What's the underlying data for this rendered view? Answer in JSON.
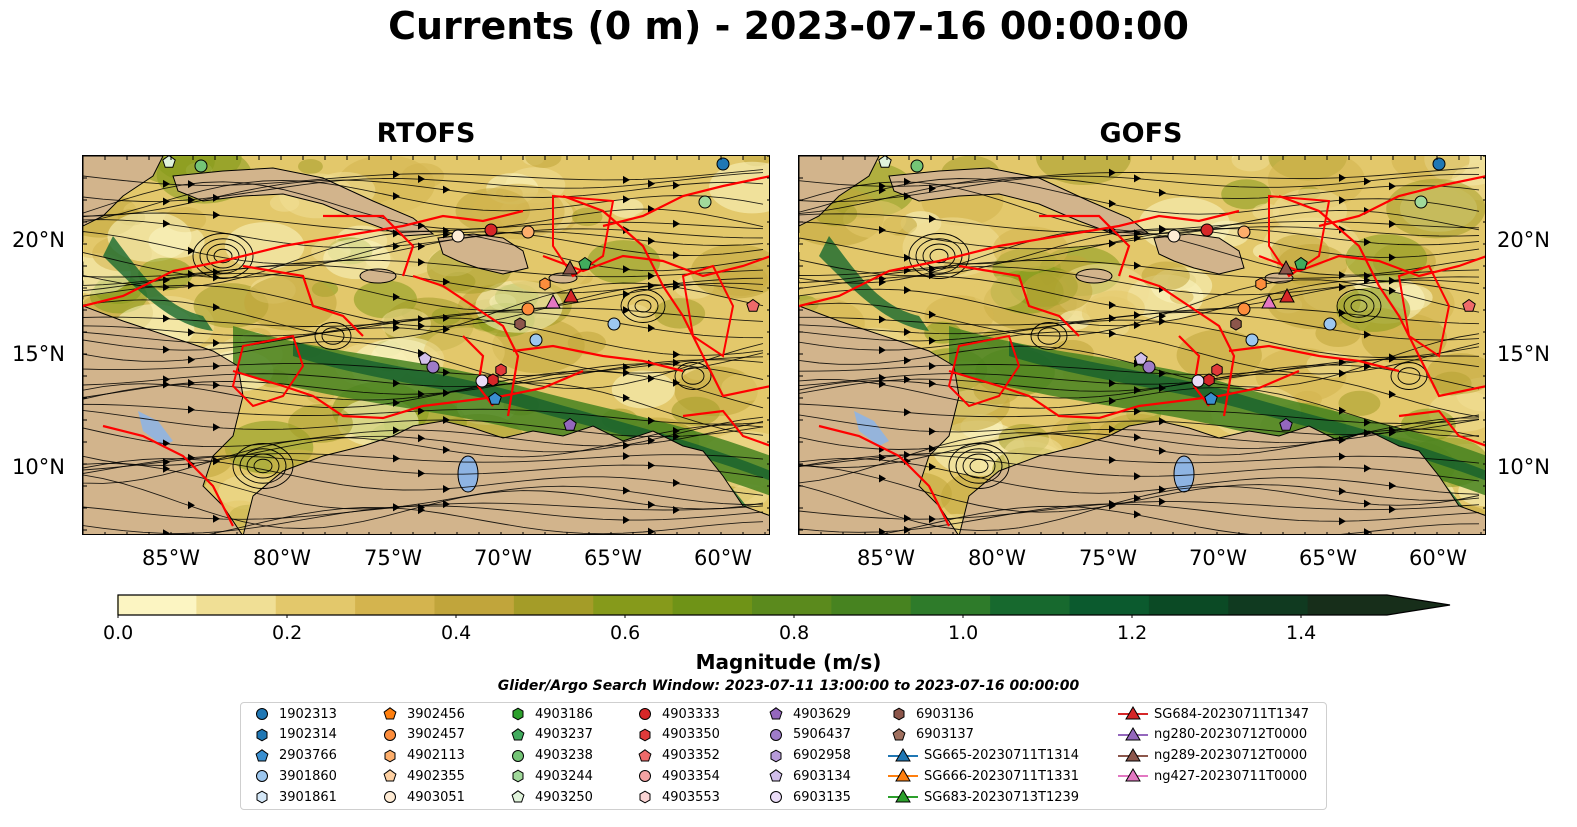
{
  "title": "Currents (0 m) - 2023-07-16 00:00:00",
  "panels": [
    {
      "name": "RTOFS"
    },
    {
      "name": "GOFS"
    }
  ],
  "lat_labels": [
    "20°N",
    "15°N",
    "10°N"
  ],
  "lon_labels": [
    "85°W",
    "80°W",
    "75°W",
    "70°W",
    "65°W",
    "60°W"
  ],
  "colorbar": {
    "title": "Magnitude (m/s)",
    "ticks": [
      "0.0",
      "0.2",
      "0.4",
      "0.6",
      "0.8",
      "1.0",
      "1.2",
      "1.4"
    ],
    "colors": [
      "#fcf5c2",
      "#f0df95",
      "#e3c86b",
      "#d4b44e",
      "#c1a53b",
      "#a49c28",
      "#869a1b",
      "#6f9317",
      "#5b8a1d",
      "#478320",
      "#2e7b2a",
      "#17692e",
      "#0b5a2e",
      "#0b4a25",
      "#103a20",
      "#172e1a"
    ]
  },
  "search_window": "Glider/Argo Search Window: 2023-07-11 13:00:00 to 2023-07-16 00:00:00",
  "legend": {
    "columns": [
      [
        {
          "label": "1902313",
          "marker": "circle",
          "color": "#1f77b4"
        },
        {
          "label": "1902314",
          "marker": "hexagon",
          "color": "#1f77b4"
        },
        {
          "label": "2903766",
          "marker": "pentagon",
          "color": "#3a8fd0"
        },
        {
          "label": "3901860",
          "marker": "circle",
          "color": "#9dc7ef"
        },
        {
          "label": "3901861",
          "marker": "hexagon",
          "color": "#d4e7f7"
        }
      ],
      [
        {
          "label": "3902456",
          "marker": "pentagon",
          "color": "#ff7f0e"
        },
        {
          "label": "3902457",
          "marker": "circle",
          "color": "#fd8d3c"
        },
        {
          "label": "4902113",
          "marker": "hexagon",
          "color": "#fdae6b"
        },
        {
          "label": "4902355",
          "marker": "pentagon",
          "color": "#fdd0a2"
        },
        {
          "label": "4903051",
          "marker": "circle",
          "color": "#feebd4"
        }
      ],
      [
        {
          "label": "4903186",
          "marker": "hexagon",
          "color": "#2ca02c"
        },
        {
          "label": "4903237",
          "marker": "pentagon",
          "color": "#41ab5d"
        },
        {
          "label": "4903238",
          "marker": "circle",
          "color": "#74c476"
        },
        {
          "label": "4903244",
          "marker": "hexagon",
          "color": "#a1d99b"
        },
        {
          "label": "4903250",
          "marker": "pentagon",
          "color": "#e0f3db"
        }
      ],
      [
        {
          "label": "4903333",
          "marker": "circle",
          "color": "#d62728"
        },
        {
          "label": "4903350",
          "marker": "hexagon",
          "color": "#e03a3a"
        },
        {
          "label": "4903352",
          "marker": "pentagon",
          "color": "#ef6a6a"
        },
        {
          "label": "4903354",
          "marker": "circle",
          "color": "#f4a3a3"
        },
        {
          "label": "4903553",
          "marker": "hexagon",
          "color": "#fbd5d5"
        }
      ],
      [
        {
          "label": "4903629",
          "marker": "pentagon",
          "color": "#9467bd"
        },
        {
          "label": "5906437",
          "marker": "circle",
          "color": "#9e7bc8"
        },
        {
          "label": "6902958",
          "marker": "hexagon",
          "color": "#b79bd9"
        },
        {
          "label": "6903134",
          "marker": "pentagon",
          "color": "#d2bfea"
        },
        {
          "label": "6903135",
          "marker": "circle",
          "color": "#eadcf7"
        }
      ],
      [
        {
          "label": "6903136",
          "marker": "hexagon",
          "color": "#8c564b"
        },
        {
          "label": "6903137",
          "marker": "pentagon",
          "color": "#a0705f"
        },
        {
          "label": "SG665-20230711T1314",
          "marker": "triangle-line",
          "color": "#1f77b4"
        },
        {
          "label": "SG666-20230711T1331",
          "marker": "triangle-line",
          "color": "#ff7f0e"
        },
        {
          "label": "SG683-20230713T1239",
          "marker": "triangle-line",
          "color": "#2ca02c"
        }
      ],
      [
        {
          "label": "SG684-20230711T1347",
          "marker": "triangle-line",
          "color": "#d62728"
        },
        {
          "label": "ng280-20230712T0000",
          "marker": "triangle-line",
          "color": "#9467bd"
        },
        {
          "label": "ng289-20230712T0000",
          "marker": "triangle-line",
          "color": "#8c564b"
        },
        {
          "label": "ng427-20230711T0000",
          "marker": "triangle-line",
          "color": "#e377c2"
        }
      ]
    ]
  },
  "colors": {
    "land": "#d2b48c",
    "boundary": "#ff0000",
    "water_bodies": "#8eb4e3"
  }
}
